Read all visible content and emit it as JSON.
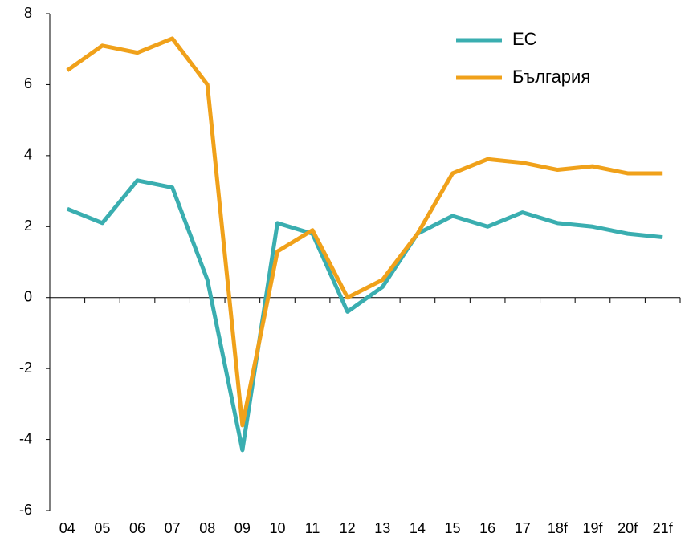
{
  "chart_data": {
    "type": "line",
    "categories": [
      "04",
      "05",
      "06",
      "07",
      "08",
      "09",
      "10",
      "11",
      "12",
      "13",
      "14",
      "15",
      "16",
      "17",
      "18f",
      "19f",
      "20f",
      "21f"
    ],
    "series": [
      {
        "name": "ЕС",
        "color": "#3aaeb0",
        "values": [
          2.5,
          2.1,
          3.3,
          3.1,
          0.5,
          -4.3,
          2.1,
          1.8,
          -0.4,
          0.3,
          1.8,
          2.3,
          2.0,
          2.4,
          2.1,
          2.0,
          1.8,
          1.7
        ]
      },
      {
        "name": "България",
        "color": "#f0a11a",
        "values": [
          6.4,
          7.1,
          6.9,
          7.3,
          6.0,
          -3.6,
          1.3,
          1.9,
          0.0,
          0.5,
          1.8,
          3.5,
          3.9,
          3.8,
          3.6,
          3.7,
          3.5,
          3.5
        ]
      }
    ],
    "ylim": [
      -6,
      8
    ],
    "yticks": [
      -6,
      -4,
      -2,
      0,
      2,
      4,
      6,
      8
    ],
    "legend": "top-right"
  }
}
